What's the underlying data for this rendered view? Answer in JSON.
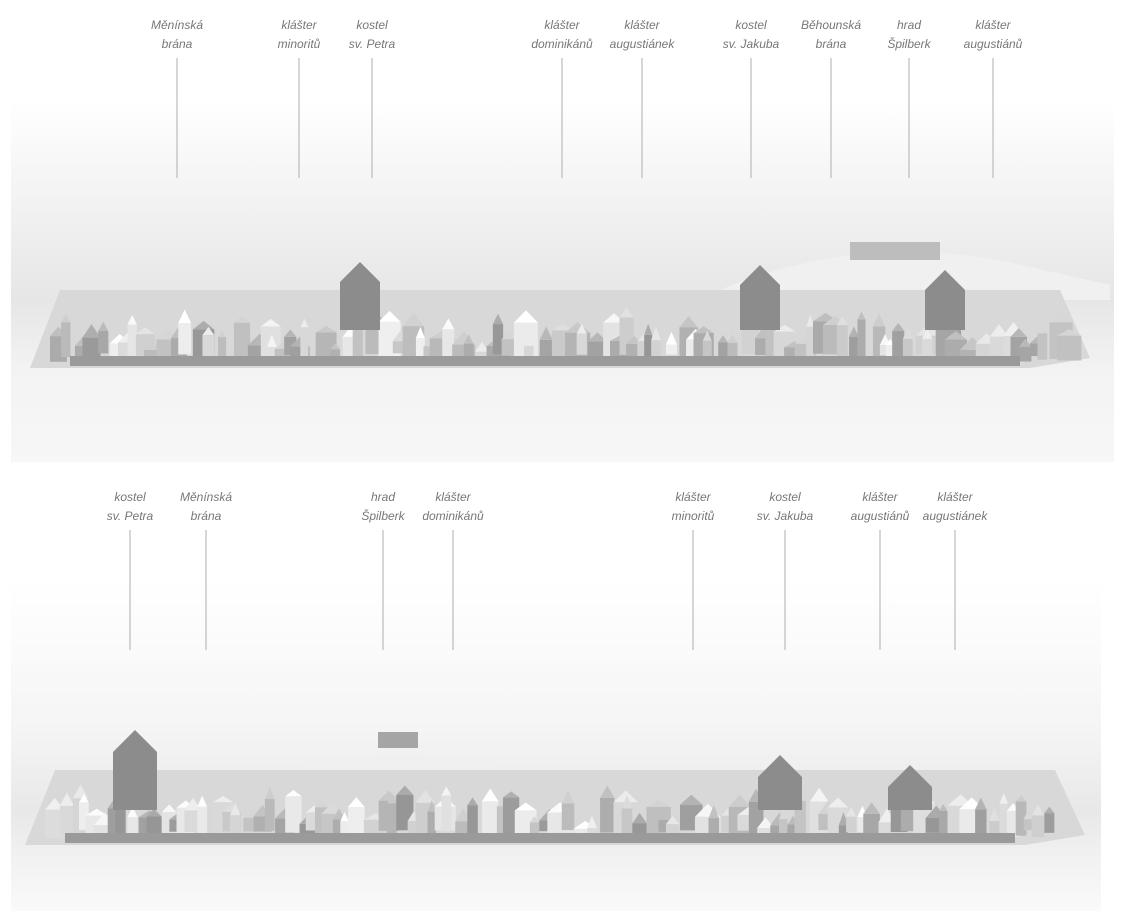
{
  "panels": [
    {
      "labels": [
        {
          "lines": [
            "Měnínská",
            "brána"
          ]
        },
        {
          "lines": [
            "klášter",
            "minoritů"
          ]
        },
        {
          "lines": [
            "kostel",
            "sv. Petra"
          ]
        },
        {
          "lines": [
            "klášter",
            "dominikánů"
          ]
        },
        {
          "lines": [
            "klášter",
            "augustiánek"
          ]
        },
        {
          "lines": [
            "kostel",
            "sv. Jakuba"
          ]
        },
        {
          "lines": [
            "Běhounská",
            "brána"
          ]
        },
        {
          "lines": [
            "hrad",
            "Špilberk"
          ]
        },
        {
          "lines": [
            "klášter",
            "augustiánů"
          ]
        }
      ]
    },
    {
      "labels": [
        {
          "lines": [
            "kostel",
            "sv. Petra"
          ]
        },
        {
          "lines": [
            "Měnínská",
            "brána"
          ]
        },
        {
          "lines": [
            "hrad",
            "Špilberk"
          ]
        },
        {
          "lines": [
            "klášter",
            "dominikánů"
          ]
        },
        {
          "lines": [
            "klášter",
            "minoritů"
          ]
        },
        {
          "lines": [
            "kostel",
            "sv. Jakuba"
          ]
        },
        {
          "lines": [
            "klášter",
            "augustiánů"
          ]
        },
        {
          "lines": [
            "klášter",
            "augustiánek"
          ]
        }
      ]
    }
  ]
}
